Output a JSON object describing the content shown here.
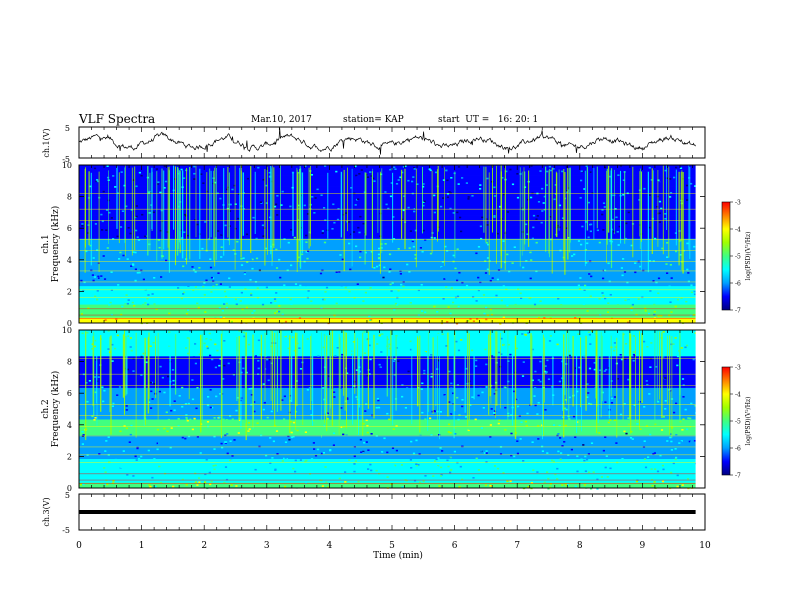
{
  "header": {
    "title": "VLF Spectra",
    "date": "Mar.10, 2017",
    "station": "station= KAP",
    "start": "start  UT =   16: 20: 1"
  },
  "colors": {
    "colormap": [
      "#000080",
      "#0000ff",
      "#00a0ff",
      "#00ffff",
      "#40ff80",
      "#a0ff00",
      "#ffff00",
      "#ff8000",
      "#ff0000",
      "#ffffff"
    ],
    "trace": "#000000",
    "axis": "#000000"
  },
  "chart_data": [
    {
      "type": "line",
      "name": "ch1-waveform",
      "ylabel": "ch.1(V)",
      "ylim": [
        -5,
        5
      ],
      "yticks": [
        "5",
        "-5"
      ],
      "xlim": [
        0,
        10
      ],
      "description_values": "noisy voltage trace fluctuating roughly between -2 and 2 V"
    },
    {
      "type": "heatmap",
      "name": "ch1-spectrogram",
      "ylabel_line1": "ch.1",
      "ylabel_line2": "Frequency (kHz)",
      "ylim": [
        0,
        10
      ],
      "yticks": [
        "0",
        "2",
        "4",
        "6",
        "8",
        "10"
      ],
      "xlim": [
        0,
        10
      ],
      "colorbar": {
        "label": "log(PSD)(V²/Hz)",
        "range": [
          -7,
          -3
        ],
        "ticks": [
          "-3",
          "-4",
          "-5",
          "-6",
          "-7"
        ]
      }
    },
    {
      "type": "heatmap",
      "name": "ch2-spectrogram",
      "ylabel_line1": "ch.2",
      "ylabel_line2": "Frequency (kHz)",
      "ylim": [
        0,
        10
      ],
      "yticks": [
        "0",
        "2",
        "4",
        "6",
        "8",
        "10"
      ],
      "xlim": [
        0,
        10
      ],
      "colorbar": {
        "label": "log(PSD)(V²/Hz)",
        "range": [
          -7,
          -3
        ],
        "ticks": [
          "-3",
          "-4",
          "-5",
          "-6",
          "-7"
        ]
      }
    },
    {
      "type": "line",
      "name": "ch3-waveform",
      "ylabel": "ch.3(V)",
      "ylim": [
        -5,
        5
      ],
      "yticks": [
        "5",
        "-5"
      ],
      "xlim": [
        0,
        10
      ],
      "constant_value": 0
    }
  ],
  "xaxis": {
    "label": "Time  (min)",
    "ticks": [
      "0",
      "1",
      "2",
      "3",
      "4",
      "5",
      "6",
      "7",
      "8",
      "9",
      "10"
    ]
  }
}
